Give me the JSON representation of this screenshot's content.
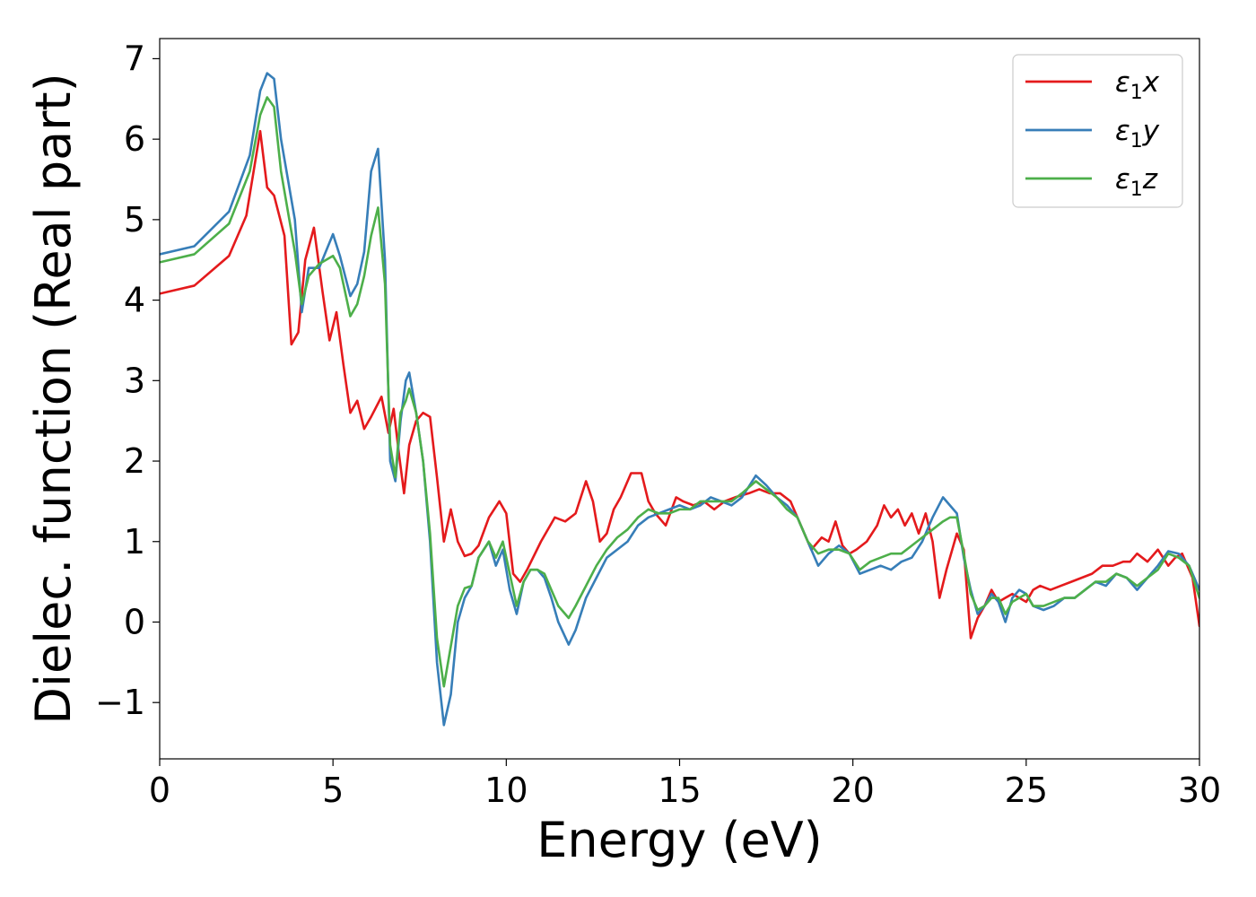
{
  "chart_data": {
    "type": "line",
    "xlabel": "Energy (eV)",
    "ylabel": "Dielec. function (Real part)",
    "xlim": [
      0,
      30
    ],
    "ylim": [
      -1.7,
      7.25
    ],
    "xticks": [
      0,
      5,
      10,
      15,
      20,
      25,
      30
    ],
    "xtick_labels": [
      "0",
      "5",
      "10",
      "15",
      "20",
      "25",
      "30"
    ],
    "yticks": [
      -1,
      0,
      1,
      2,
      3,
      4,
      5,
      6,
      7
    ],
    "ytick_labels": [
      "−1",
      "0",
      "1",
      "2",
      "3",
      "4",
      "5",
      "6",
      "7"
    ],
    "grid": false,
    "legend_position": "top-right",
    "series": [
      {
        "name": "ε₁x",
        "name_parts": {
          "base": "ε",
          "sub": "1",
          "suffix": "x"
        },
        "color": "#e41a1c",
        "x": [
          0,
          1,
          2,
          2.5,
          2.9,
          3.1,
          3.3,
          3.6,
          3.8,
          4.0,
          4.2,
          4.45,
          4.7,
          4.9,
          5.1,
          5.3,
          5.5,
          5.7,
          5.9,
          6.1,
          6.4,
          6.6,
          6.75,
          6.9,
          7.05,
          7.2,
          7.4,
          7.6,
          7.8,
          8.0,
          8.2,
          8.4,
          8.6,
          8.8,
          9.0,
          9.2,
          9.5,
          9.8,
          10.0,
          10.2,
          10.4,
          10.6,
          11.0,
          11.4,
          11.7,
          12.0,
          12.3,
          12.5,
          12.7,
          12.9,
          13.1,
          13.3,
          13.6,
          13.9,
          14.1,
          14.3,
          14.6,
          14.9,
          15.1,
          15.4,
          15.7,
          16.0,
          16.3,
          16.6,
          17.0,
          17.3,
          17.6,
          17.9,
          18.2,
          18.5,
          18.8,
          19.1,
          19.3,
          19.5,
          19.7,
          19.9,
          20.1,
          20.4,
          20.7,
          20.9,
          21.1,
          21.3,
          21.5,
          21.7,
          21.9,
          22.1,
          22.3,
          22.5,
          22.7,
          22.9,
          23.0,
          23.2,
          23.4,
          23.6,
          23.8,
          24.0,
          24.2,
          24.4,
          24.6,
          24.8,
          25.0,
          25.2,
          25.4,
          25.7,
          26.0,
          26.3,
          26.6,
          26.9,
          27.2,
          27.5,
          27.8,
          28.0,
          28.2,
          28.5,
          28.8,
          29.1,
          29.3,
          29.5,
          29.8,
          30.0
        ],
        "y": [
          4.08,
          4.18,
          4.55,
          5.05,
          6.1,
          5.4,
          5.3,
          4.8,
          3.45,
          3.6,
          4.5,
          4.9,
          4.1,
          3.5,
          3.85,
          3.2,
          2.6,
          2.75,
          2.4,
          2.55,
          2.8,
          2.35,
          2.65,
          2.1,
          1.6,
          2.2,
          2.5,
          2.6,
          2.55,
          1.8,
          1.0,
          1.4,
          1.0,
          0.82,
          0.85,
          0.95,
          1.3,
          1.5,
          1.35,
          0.6,
          0.5,
          0.65,
          1.0,
          1.3,
          1.25,
          1.35,
          1.75,
          1.5,
          1.0,
          1.1,
          1.4,
          1.55,
          1.85,
          1.85,
          1.5,
          1.35,
          1.2,
          1.55,
          1.5,
          1.45,
          1.5,
          1.4,
          1.5,
          1.55,
          1.6,
          1.65,
          1.6,
          1.6,
          1.5,
          1.2,
          0.9,
          1.05,
          1.0,
          1.25,
          0.95,
          0.85,
          0.9,
          1.0,
          1.2,
          1.45,
          1.3,
          1.4,
          1.2,
          1.35,
          1.1,
          1.35,
          1.0,
          0.3,
          0.65,
          0.95,
          1.1,
          0.9,
          -0.2,
          0.05,
          0.2,
          0.4,
          0.25,
          0.3,
          0.35,
          0.3,
          0.25,
          0.4,
          0.45,
          0.4,
          0.45,
          0.5,
          0.55,
          0.6,
          0.7,
          0.7,
          0.75,
          0.75,
          0.85,
          0.75,
          0.9,
          0.7,
          0.8,
          0.85,
          0.55,
          -0.05
        ]
      },
      {
        "name": "ε₁y",
        "name_parts": {
          "base": "ε",
          "sub": "1",
          "suffix": "y"
        },
        "color": "#377eb8",
        "x": [
          0,
          1,
          2,
          2.6,
          2.9,
          3.1,
          3.3,
          3.5,
          3.7,
          3.9,
          4.1,
          4.3,
          4.6,
          5.0,
          5.2,
          5.5,
          5.7,
          5.9,
          6.1,
          6.3,
          6.5,
          6.65,
          6.8,
          6.95,
          7.1,
          7.2,
          7.4,
          7.6,
          7.8,
          8.0,
          8.2,
          8.4,
          8.6,
          8.8,
          9.0,
          9.2,
          9.5,
          9.7,
          9.9,
          10.1,
          10.3,
          10.5,
          10.7,
          10.9,
          11.1,
          11.3,
          11.5,
          11.8,
          12.0,
          12.3,
          12.6,
          12.9,
          13.2,
          13.5,
          13.8,
          14.1,
          14.4,
          14.7,
          15.0,
          15.3,
          15.6,
          15.9,
          16.2,
          16.5,
          16.8,
          17.2,
          17.5,
          17.8,
          18.1,
          18.4,
          18.7,
          19.0,
          19.3,
          19.6,
          19.9,
          20.2,
          20.5,
          20.8,
          21.1,
          21.4,
          21.7,
          22.0,
          22.3,
          22.6,
          22.8,
          23.0,
          23.2,
          23.4,
          23.6,
          23.8,
          24.0,
          24.2,
          24.4,
          24.6,
          24.8,
          25.0,
          25.2,
          25.5,
          25.8,
          26.1,
          26.4,
          26.7,
          27.0,
          27.3,
          27.6,
          27.9,
          28.2,
          28.5,
          28.8,
          29.1,
          29.4,
          29.7,
          30.0
        ],
        "y": [
          4.57,
          4.67,
          5.1,
          5.8,
          6.6,
          6.82,
          6.75,
          6.0,
          5.5,
          5.0,
          3.85,
          4.4,
          4.4,
          4.82,
          4.55,
          4.05,
          4.2,
          4.6,
          5.6,
          5.88,
          4.5,
          2.0,
          1.75,
          2.5,
          3.0,
          3.1,
          2.6,
          2.0,
          1.0,
          -0.5,
          -1.28,
          -0.9,
          0.0,
          0.3,
          0.45,
          0.8,
          1.0,
          0.7,
          0.9,
          0.4,
          0.1,
          0.5,
          0.65,
          0.65,
          0.55,
          0.3,
          0.0,
          -0.28,
          -0.1,
          0.3,
          0.55,
          0.8,
          0.9,
          1.0,
          1.2,
          1.3,
          1.35,
          1.4,
          1.45,
          1.4,
          1.45,
          1.55,
          1.5,
          1.45,
          1.55,
          1.82,
          1.7,
          1.55,
          1.45,
          1.3,
          1.0,
          0.7,
          0.85,
          0.95,
          0.85,
          0.6,
          0.65,
          0.7,
          0.65,
          0.75,
          0.8,
          1.0,
          1.3,
          1.55,
          1.45,
          1.35,
          0.8,
          0.4,
          0.1,
          0.2,
          0.35,
          0.25,
          0.0,
          0.3,
          0.4,
          0.35,
          0.2,
          0.15,
          0.2,
          0.3,
          0.3,
          0.4,
          0.5,
          0.45,
          0.6,
          0.55,
          0.4,
          0.55,
          0.7,
          0.88,
          0.85,
          0.7,
          0.4
        ]
      },
      {
        "name": "ε₁z",
        "name_parts": {
          "base": "ε",
          "sub": "1",
          "suffix": "z"
        },
        "color": "#4daf4a",
        "x": [
          0,
          1,
          2,
          2.6,
          2.9,
          3.1,
          3.3,
          3.5,
          3.7,
          3.9,
          4.1,
          4.3,
          4.6,
          5.0,
          5.2,
          5.5,
          5.7,
          5.9,
          6.1,
          6.3,
          6.5,
          6.65,
          6.8,
          6.95,
          7.1,
          7.2,
          7.4,
          7.6,
          7.8,
          8.0,
          8.2,
          8.4,
          8.6,
          8.8,
          9.0,
          9.2,
          9.5,
          9.7,
          9.9,
          10.1,
          10.3,
          10.5,
          10.7,
          10.9,
          11.1,
          11.3,
          11.5,
          11.8,
          12.0,
          12.3,
          12.6,
          12.9,
          13.2,
          13.5,
          13.8,
          14.1,
          14.4,
          14.7,
          15.0,
          15.3,
          15.6,
          15.9,
          16.2,
          16.5,
          16.8,
          17.2,
          17.5,
          17.8,
          18.1,
          18.4,
          18.7,
          19.0,
          19.3,
          19.6,
          19.9,
          20.2,
          20.5,
          20.8,
          21.1,
          21.4,
          21.7,
          22.0,
          22.3,
          22.6,
          22.8,
          23.0,
          23.2,
          23.4,
          23.6,
          23.8,
          24.0,
          24.2,
          24.4,
          24.6,
          24.8,
          25.0,
          25.2,
          25.5,
          25.8,
          26.1,
          26.4,
          26.7,
          27.0,
          27.3,
          27.6,
          27.9,
          28.2,
          28.5,
          28.8,
          29.1,
          29.4,
          29.7,
          30.0
        ],
        "y": [
          4.47,
          4.57,
          4.95,
          5.6,
          6.3,
          6.52,
          6.4,
          5.6,
          5.1,
          4.6,
          3.95,
          4.3,
          4.45,
          4.55,
          4.4,
          3.8,
          3.95,
          4.3,
          4.8,
          5.15,
          4.2,
          2.2,
          1.8,
          2.6,
          2.75,
          2.9,
          2.6,
          2.0,
          1.1,
          -0.2,
          -0.8,
          -0.3,
          0.2,
          0.42,
          0.45,
          0.8,
          1.0,
          0.8,
          1.0,
          0.6,
          0.2,
          0.5,
          0.65,
          0.65,
          0.6,
          0.4,
          0.2,
          0.05,
          0.2,
          0.45,
          0.7,
          0.9,
          1.05,
          1.15,
          1.3,
          1.4,
          1.35,
          1.35,
          1.4,
          1.4,
          1.5,
          1.5,
          1.5,
          1.5,
          1.6,
          1.75,
          1.65,
          1.55,
          1.4,
          1.3,
          1.0,
          0.85,
          0.9,
          0.9,
          0.85,
          0.65,
          0.75,
          0.8,
          0.85,
          0.85,
          0.95,
          1.05,
          1.15,
          1.25,
          1.3,
          1.3,
          0.85,
          0.35,
          0.15,
          0.2,
          0.3,
          0.3,
          0.1,
          0.25,
          0.3,
          0.35,
          0.2,
          0.2,
          0.25,
          0.3,
          0.3,
          0.4,
          0.5,
          0.5,
          0.6,
          0.55,
          0.45,
          0.55,
          0.65,
          0.85,
          0.8,
          0.7,
          0.3
        ]
      }
    ]
  }
}
